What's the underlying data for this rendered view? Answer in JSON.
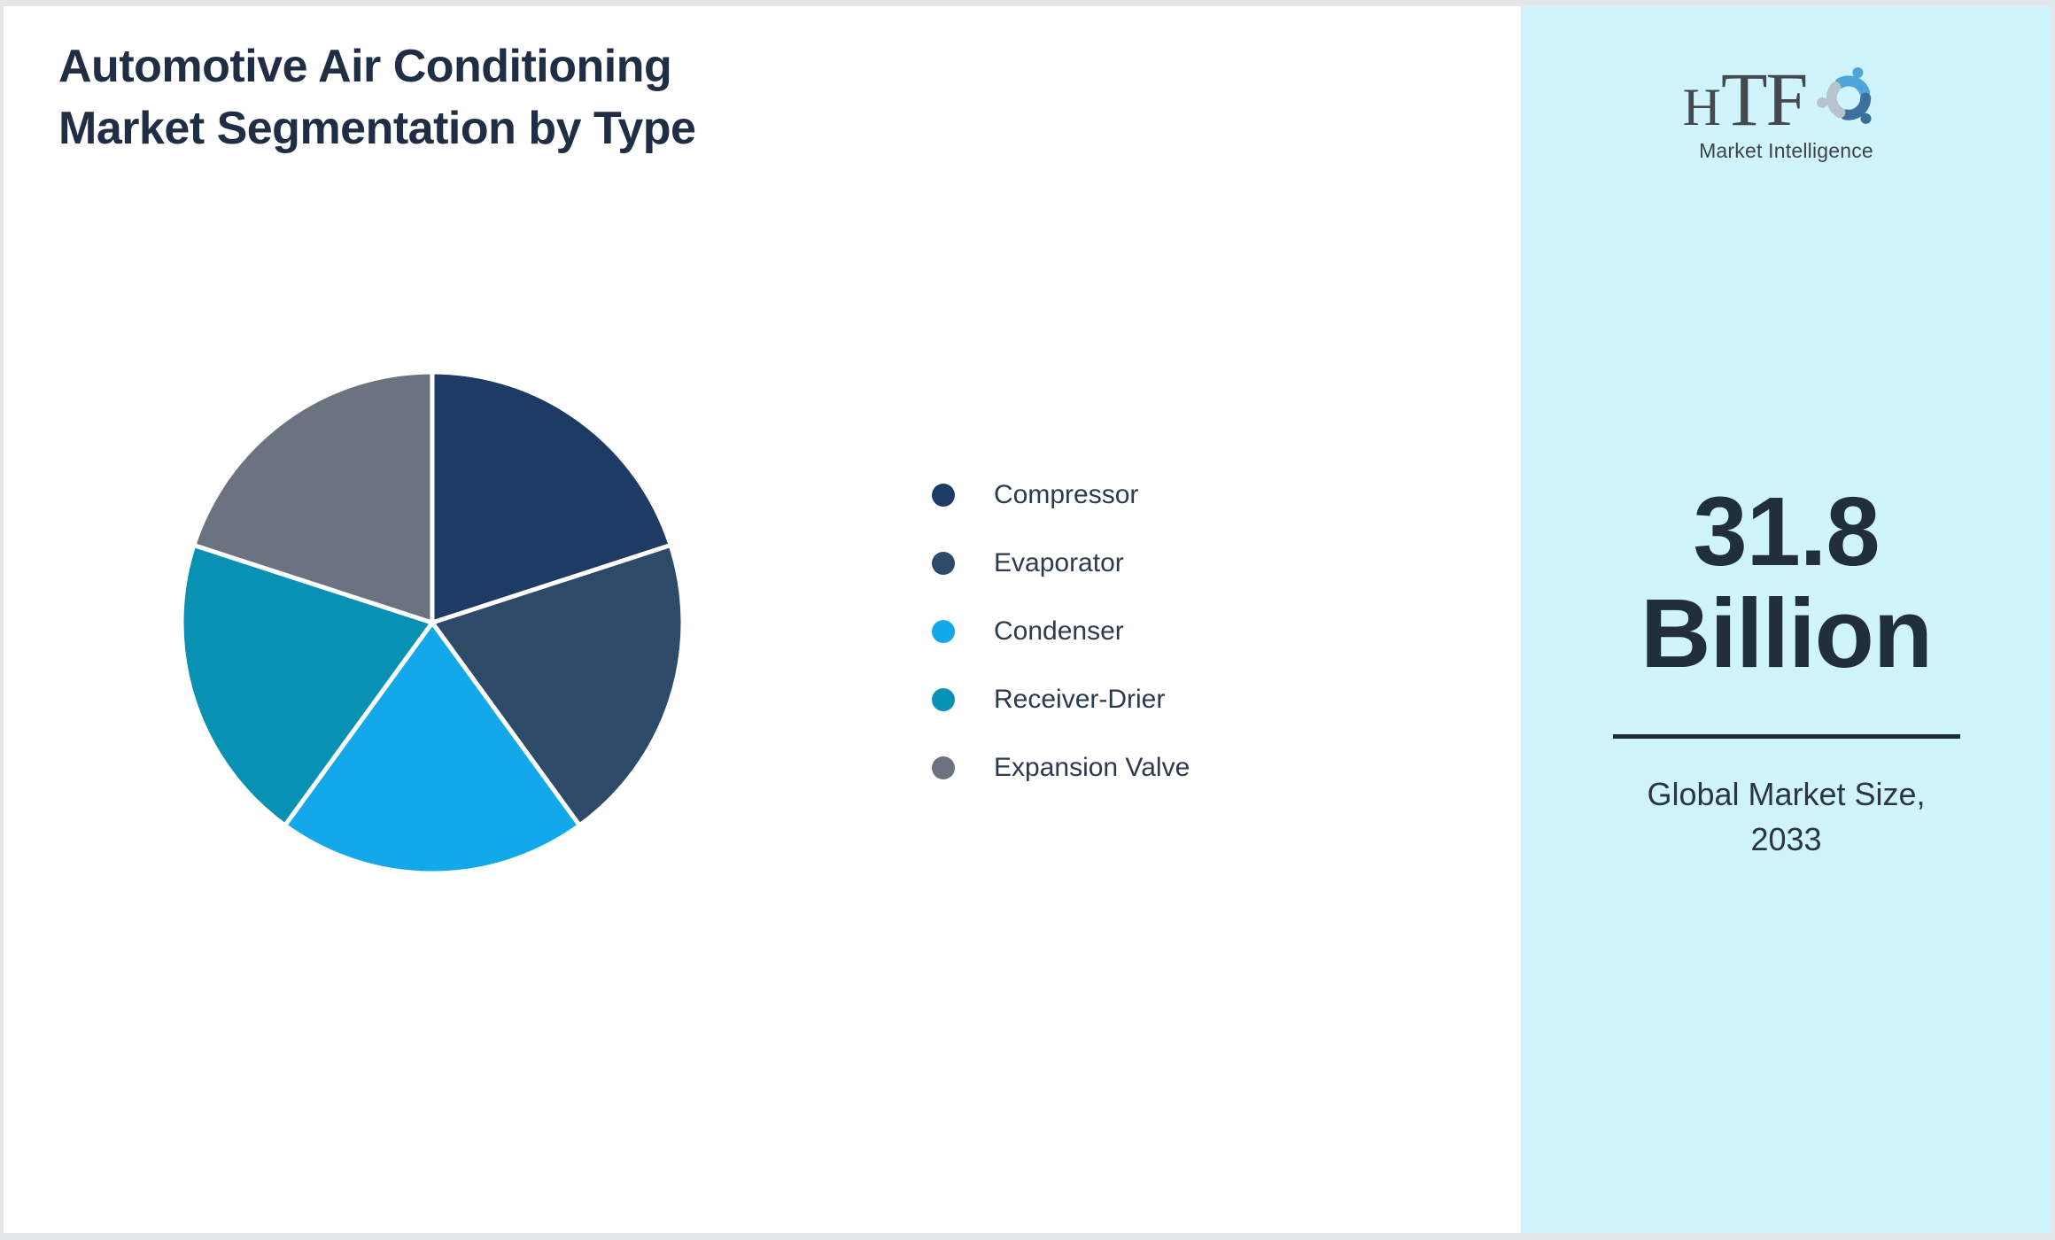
{
  "header": {
    "title_line1": "Automotive Air Conditioning",
    "title_line2": "Market Segmentation by Type"
  },
  "logo": {
    "brand_h": "H",
    "brand_tf": "TF",
    "subtitle": "Market Intelligence",
    "swirl_colors": [
      "#4fa4d8",
      "#3d6f9f",
      "#b7c3cd"
    ]
  },
  "panel": {
    "background": "#cff4fb",
    "value_line1": "31.8",
    "value_line2": "Billion",
    "caption_line1": "Global Market Size,",
    "caption_line2": "2033",
    "text_color": "#212e3e",
    "divider_color": "#1f2b3a"
  },
  "chart_data": {
    "type": "pie",
    "title": "Automotive Air Conditioning Market Segmentation by Type",
    "units": "percent_share",
    "start_angle_deg": 0,
    "direction": "clockwise",
    "legend_position": "right",
    "slice_border_color": "#ffffff",
    "segments": [
      {
        "label": "Compressor",
        "value": 20,
        "color": "#1d3b64"
      },
      {
        "label": "Evaporator",
        "value": 20,
        "color": "#2d4b69"
      },
      {
        "label": "Condenser",
        "value": 20,
        "color": "#12a8e9"
      },
      {
        "label": "Receiver-Drier",
        "value": 20,
        "color": "#0891b2"
      },
      {
        "label": "Expansion Valve",
        "value": 20,
        "color": "#6b7280"
      }
    ]
  }
}
